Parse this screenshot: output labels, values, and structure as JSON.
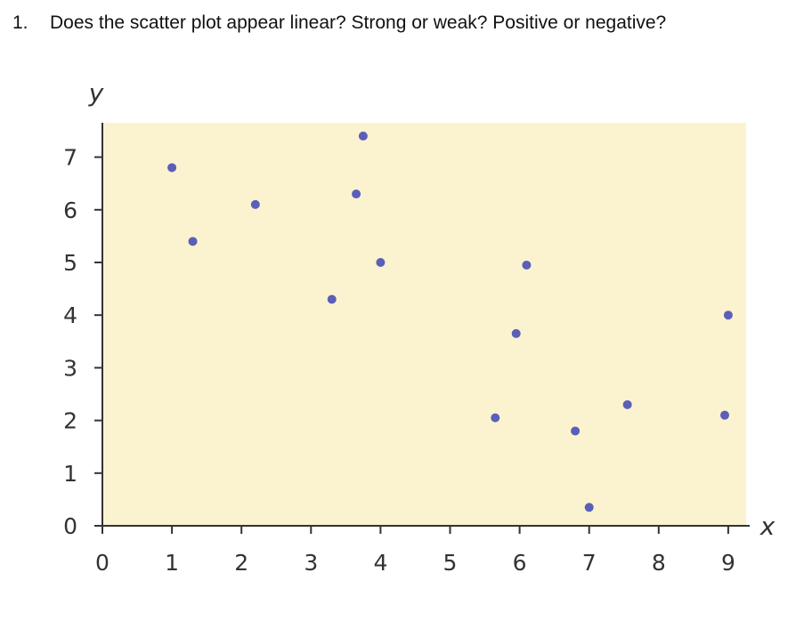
{
  "question": {
    "number": "1.",
    "text": "Does the scatter plot appear linear? Strong or weak? Positive or negative?"
  },
  "colors": {
    "plot_background": "#fbf3d0",
    "points": "#5a5fb8",
    "axis": "#333333"
  },
  "chart_data": {
    "type": "scatter",
    "title": "",
    "xlabel": "x",
    "ylabel": "y",
    "xlim": [
      0,
      9.25
    ],
    "ylim": [
      0,
      7.75
    ],
    "xticks": [
      0,
      1,
      2,
      3,
      4,
      5,
      6,
      7,
      8,
      9
    ],
    "yticks": [
      0,
      1,
      2,
      3,
      4,
      5,
      6,
      7
    ],
    "grid": false,
    "legend": "none",
    "points": [
      {
        "x": 1.0,
        "y": 6.8
      },
      {
        "x": 1.3,
        "y": 5.4
      },
      {
        "x": 2.2,
        "y": 6.1
      },
      {
        "x": 3.3,
        "y": 4.3
      },
      {
        "x": 3.65,
        "y": 6.3
      },
      {
        "x": 3.75,
        "y": 7.4
      },
      {
        "x": 4.0,
        "y": 5.0
      },
      {
        "x": 5.65,
        "y": 2.05
      },
      {
        "x": 5.95,
        "y": 3.65
      },
      {
        "x": 6.1,
        "y": 4.95
      },
      {
        "x": 6.8,
        "y": 1.8
      },
      {
        "x": 7.0,
        "y": 0.35
      },
      {
        "x": 7.55,
        "y": 2.3
      },
      {
        "x": 8.95,
        "y": 2.1
      },
      {
        "x": 9.0,
        "y": 4.0
      }
    ]
  }
}
